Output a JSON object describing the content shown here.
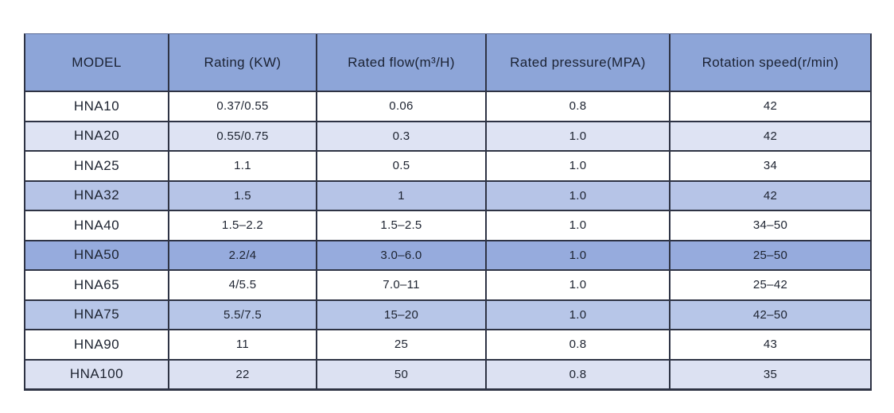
{
  "chart_data": {
    "type": "table",
    "title": "",
    "columns": [
      "MODEL",
      "Rating (KW)",
      "Rated flow(m³/H)",
      "Rated pressure(MPA)",
      "Rotation speed(r/min)"
    ],
    "rows": [
      [
        "HNA10",
        "0.37/0.55",
        "0.06",
        "0.8",
        "42"
      ],
      [
        "HNA20",
        "0.55/0.75",
        "0.3",
        "1.0",
        "42"
      ],
      [
        "HNA25",
        "1.1",
        "0.5",
        "1.0",
        "34"
      ],
      [
        "HNA32",
        "1.5",
        "1",
        "1.0",
        "42"
      ],
      [
        "HNA40",
        "1.5–2.2",
        "1.5–2.5",
        "1.0",
        "34–50"
      ],
      [
        "HNA50",
        "2.2/4",
        "3.0–6.0",
        "1.0",
        "25–50"
      ],
      [
        "HNA65",
        "4/5.5",
        "7.0–11",
        "1.0",
        "25–42"
      ],
      [
        "HNA75",
        "5.5/7.5",
        "15–20",
        "1.0",
        "42–50"
      ],
      [
        "HNA90",
        "11",
        "25",
        "0.8",
        "43"
      ],
      [
        "HNA100",
        "22",
        "50",
        "0.8",
        "35"
      ]
    ]
  },
  "styles": {
    "header_bg": "#8da5d8",
    "row_colors": [
      "#ffffff",
      "#dee3f3",
      "#ffffff",
      "#b6c4e7",
      "#ffffff",
      "#96abdd",
      "#ffffff",
      "#b7c6e8",
      "#ffffff",
      "#dce1f2"
    ],
    "border_color": "#2e3344",
    "text_color": "#1d2330",
    "page_bg": "#ffffff"
  }
}
